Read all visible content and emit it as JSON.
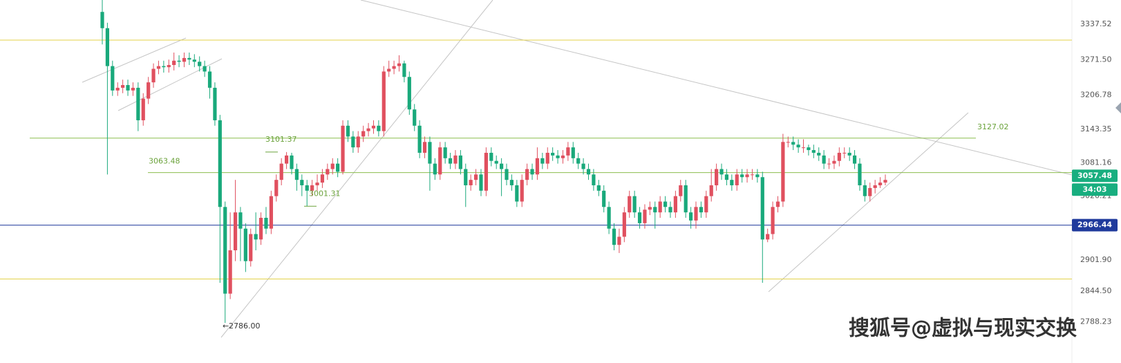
{
  "chart_data": {
    "type": "candlestick",
    "up_color": "#e0505f",
    "down_color": "#19a97b",
    "ylim": [
      2712,
      3382
    ],
    "yticks": [
      3337.52,
      {
        "value": 3271.5,
        "label": "3271.50"
      },
      3206.78,
      3143.35,
      3081.16,
      3020.21,
      {
        "value": 2901.9,
        "label": "2901.90"
      },
      {
        "value": 2844.5,
        "label": "2844.50"
      },
      2788.23
    ],
    "open": [
      3360,
      3330,
      3260,
      3215,
      3220,
      3225,
      3215,
      3220,
      3160,
      3200,
      3230,
      3255,
      3260,
      3258,
      3262,
      3270,
      3268,
      3275,
      3272,
      3268,
      3260,
      3250,
      3220,
      3160,
      3000,
      2840,
      2920,
      2990,
      2960,
      2900,
      2950,
      2940,
      2980,
      2960,
      3020,
      3050,
      3080,
      3095,
      3070,
      3050,
      3040,
      3030,
      3040,
      3045,
      3060,
      3070,
      3080,
      3065,
      3150,
      3130,
      3110,
      3130,
      3140,
      3145,
      3150,
      3140,
      3250,
      3255,
      3260,
      3265,
      3240,
      3180,
      3150,
      3100,
      3120,
      3080,
      3060,
      3110,
      3090,
      3080,
      3095,
      3070,
      3040,
      3050,
      3060,
      3030,
      3100,
      3085,
      3080,
      3070,
      3050,
      3040,
      3010,
      3050,
      3070,
      3060,
      3090,
      3080,
      3100,
      3095,
      3090,
      3095,
      3110,
      3090,
      3080,
      3070,
      3060,
      3040,
      3030,
      3000,
      2960,
      2930,
      2945,
      2990,
      3020,
      2990,
      2970,
      2995,
      3000,
      2990,
      3010,
      3000,
      2990,
      3020,
      3040,
      2990,
      2975,
      3000,
      2990,
      3020,
      3040,
      3070,
      3060,
      3050,
      3040,
      3060,
      3055,
      3060,
      3060,
      3055,
      2940,
      2950,
      3000,
      3010,
      3120,
      3120,
      3115,
      3110,
      3110,
      3105,
      3100,
      3095,
      3080,
      3080,
      3085,
      3100,
      3100,
      3095,
      3080,
      3040,
      3020,
      3035,
      3040,
      3045
    ],
    "high": [
      3384,
      3340,
      3270,
      3230,
      3235,
      3235,
      3230,
      3230,
      3210,
      3240,
      3265,
      3270,
      3270,
      3272,
      3285,
      3280,
      3285,
      3285,
      3282,
      3278,
      3270,
      3260,
      3230,
      3170,
      3010,
      2990,
      3050,
      3000,
      2970,
      2960,
      2990,
      2990,
      3000,
      3030,
      3060,
      3090,
      3101.37,
      3100,
      3080,
      3060,
      3050,
      3050,
      3060,
      3070,
      3080,
      3090,
      3090,
      3160,
      3160,
      3140,
      3140,
      3150,
      3155,
      3160,
      3160,
      3260,
      3270,
      3270,
      3280,
      3270,
      3250,
      3190,
      3160,
      3130,
      3130,
      3090,
      3120,
      3120,
      3100,
      3105,
      3105,
      3080,
      3060,
      3070,
      3070,
      3110,
      3110,
      3095,
      3090,
      3080,
      3060,
      3050,
      3060,
      3080,
      3080,
      3110,
      3100,
      3110,
      3110,
      3105,
      3105,
      3120,
      3120,
      3100,
      3090,
      3080,
      3070,
      3050,
      3040,
      3010,
      2970,
      2960,
      3000,
      3030,
      3030,
      3000,
      3005,
      3010,
      3010,
      3020,
      3020,
      3010,
      3030,
      3050,
      3050,
      3000,
      3010,
      3010,
      3030,
      3070,
      3080,
      3080,
      3070,
      3060,
      3070,
      3070,
      3070,
      3070,
      3070,
      3065,
      2960,
      3010,
      3020,
      3135,
      3130,
      3130,
      3125,
      3125,
      3115,
      3115,
      3110,
      3105,
      3090,
      3095,
      3110,
      3110,
      3110,
      3105,
      3090,
      3050,
      3045,
      3050,
      3055,
      3060
    ],
    "low": [
      3300,
      3060,
      3205,
      3205,
      3210,
      3205,
      3205,
      3140,
      3150,
      3190,
      3220,
      3245,
      3248,
      3248,
      3252,
      3258,
      3258,
      3262,
      3258,
      3250,
      3240,
      3200,
      3150,
      2860,
      2786,
      2830,
      2900,
      2900,
      2880,
      2890,
      2920,
      2930,
      2950,
      2950,
      3010,
      3040,
      3070,
      3060,
      3030,
      3020,
      3001.31,
      3020,
      3030,
      3035,
      3050,
      3060,
      3055,
      3060,
      3120,
      3100,
      3100,
      3120,
      3130,
      3135,
      3130,
      3130,
      3240,
      3245,
      3250,
      3230,
      3170,
      3140,
      3090,
      3090,
      3030,
      3050,
      3050,
      3080,
      3070,
      3070,
      3060,
      3000,
      3030,
      3040,
      3020,
      3020,
      3075,
      3070,
      3020,
      3040,
      3030,
      3000,
      3000,
      3040,
      3050,
      3050,
      3070,
      3070,
      3085,
      3080,
      3080,
      3085,
      3080,
      3070,
      3060,
      3050,
      3030,
      3020,
      2990,
      2950,
      2920,
      2915,
      2935,
      2980,
      2980,
      2960,
      2960,
      2985,
      2960,
      2980,
      2990,
      2980,
      2980,
      3010,
      2980,
      2960,
      2960,
      2980,
      2980,
      3010,
      3030,
      3050,
      3040,
      3030,
      3030,
      3045,
      3045,
      3050,
      3045,
      2860,
      2935,
      2940,
      2990,
      3000,
      3110,
      3105,
      3100,
      3100,
      3095,
      3090,
      3085,
      3070,
      3070,
      3070,
      3075,
      3090,
      3085,
      3070,
      3030,
      3010,
      3010,
      3025,
      3035,
      3040
    ],
    "close": [
      3330,
      3260,
      3215,
      3220,
      3225,
      3215,
      3220,
      3160,
      3200,
      3230,
      3255,
      3260,
      3258,
      3262,
      3270,
      3268,
      3275,
      3272,
      3268,
      3260,
      3250,
      3220,
      3160,
      3000,
      2840,
      2920,
      2990,
      2960,
      2900,
      2950,
      2940,
      2980,
      2960,
      3020,
      3050,
      3080,
      3095,
      3070,
      3050,
      3040,
      3030,
      3040,
      3045,
      3060,
      3070,
      3080,
      3065,
      3150,
      3130,
      3110,
      3130,
      3140,
      3145,
      3150,
      3140,
      3250,
      3255,
      3260,
      3265,
      3240,
      3180,
      3150,
      3100,
      3120,
      3080,
      3060,
      3110,
      3090,
      3080,
      3095,
      3070,
      3040,
      3050,
      3060,
      3030,
      3100,
      3085,
      3080,
      3070,
      3050,
      3040,
      3010,
      3050,
      3070,
      3060,
      3090,
      3080,
      3100,
      3095,
      3090,
      3095,
      3110,
      3090,
      3080,
      3070,
      3060,
      3040,
      3030,
      3000,
      2960,
      2930,
      2945,
      2990,
      3020,
      2990,
      2970,
      2995,
      3000,
      2990,
      3010,
      3000,
      2990,
      3020,
      3040,
      2990,
      2975,
      3000,
      2990,
      3020,
      3040,
      3070,
      3060,
      3050,
      3040,
      3060,
      3055,
      3060,
      3060,
      3055,
      2940,
      2950,
      3000,
      3010,
      3120,
      3120,
      3115,
      3110,
      3110,
      3105,
      3100,
      3095,
      3080,
      3080,
      3085,
      3100,
      3100,
      3095,
      3080,
      3040,
      3020,
      3035,
      3040,
      3045,
      3050
    ],
    "levels": [
      {
        "value": 3308,
        "color": "#e3d24a"
      },
      {
        "value": 3127.02,
        "color": "#8bbd4e"
      },
      {
        "value": 3063.48,
        "color": "#8bbd4e"
      },
      {
        "value": 2966.44,
        "color": "#1f3a9c"
      },
      {
        "value": 2867,
        "color": "#e3d24a"
      }
    ],
    "markers": [
      {
        "value": 3101.37
      },
      {
        "value": 3001.31
      },
      {
        "value": 2786,
        "label": "2786.00"
      }
    ],
    "price_tag": {
      "value": 3057.48,
      "color": "#18ae7f"
    },
    "countdown": "34:03"
  },
  "watermark": "搜狐号@虚拟与现实交换"
}
